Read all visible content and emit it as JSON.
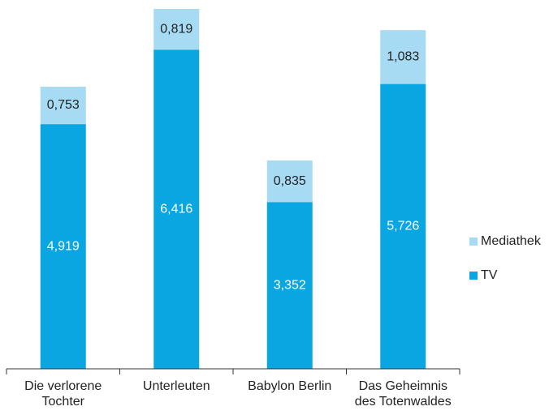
{
  "chart_data": {
    "type": "stacked_bar",
    "categories": [
      "Die verlorene Tochter",
      "Unterleuten",
      "Babylon Berlin",
      "Das Geheimnis des Totenwaldes"
    ],
    "series": [
      {
        "name": "TV",
        "color": "#0aa6e2",
        "values": [
          4.919,
          6.416,
          3.352,
          5.726
        ],
        "value_labels": [
          "4,919",
          "6,416",
          "3,352",
          "5,726"
        ]
      },
      {
        "name": "Mediathek",
        "color": "#a7dbf4",
        "values": [
          0.753,
          0.819,
          0.835,
          1.083
        ],
        "value_labels": [
          "0,753",
          "0,819",
          "0,835",
          "1,083"
        ]
      }
    ]
  }
}
